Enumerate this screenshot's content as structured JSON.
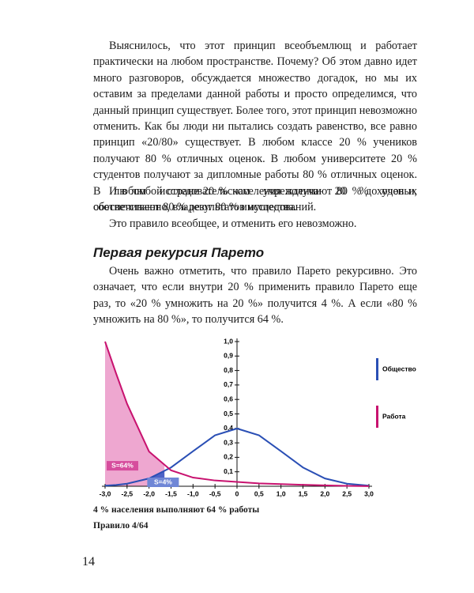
{
  "text": {
    "paragraphs": [
      "Выяснилось, что этот принцип всеобъемлющ и работает практически на любом пространстве. Почему? Об этом давно идет много разговоров, обсуждается множество догадок, но мы их оставим за пределами данной работы и просто определимся, что данный принцип существует. Более того, этот принцип невозможно отменить. Как бы люди ни пытались создать равенство, все равно принцип «20/80» существует. В любом классе 20 % учеников получают 80 % отличных оценок. В любом университете 20 % студентов получают за дипломные работы 80 % отличных оценок. В любом исследовательском учреждении 20 % ученых обеспечивают 80 % результатов исследований.",
      "И в любой стране 20 % населения получают 80 % доходов и, соответственно, владеют 80 % имущества.",
      "Это правило всеобщее, и отменить его невозможно."
    ],
    "section_title": "Первая рекурсия Парето",
    "section_paragraphs": [
      "Очень важно отметить, что правило Парето рекурсивно. Это означает, что если внутри 20 % применить правило Парето еще раз, то «20 % умножить на 20 %» получится 4 %. А если «80 % умножить на 80 %», то получится 64 %."
    ]
  },
  "chart_data": {
    "type": "line",
    "x": [
      -3,
      -2.75,
      -2.5,
      -2,
      -1.5,
      -1,
      -0.5,
      0,
      0.5,
      1,
      1.5,
      2,
      2.5,
      3
    ],
    "series": [
      {
        "name": "Общество",
        "color": "#2a4fb5",
        "values": [
          0.004,
          0.009,
          0.018,
          0.054,
          0.13,
          0.242,
          0.352,
          0.399,
          0.352,
          0.242,
          0.13,
          0.054,
          0.018,
          0.004
        ]
      },
      {
        "name": "Работа",
        "color": "#c8126f",
        "values": [
          1.0,
          0.78,
          0.57,
          0.24,
          0.11,
          0.06,
          0.04,
          0.03,
          0.02,
          0.015,
          0.01,
          0.006,
          0.003,
          0.001
        ]
      }
    ],
    "areas": [
      {
        "label": "S=64%",
        "series": 1,
        "xlim": [
          -3,
          -1.65
        ]
      },
      {
        "label": "S=4%",
        "series": 0,
        "xlim": [
          -2,
          -1.65
        ]
      }
    ],
    "xlim": [
      -3,
      3
    ],
    "ylim": [
      0,
      1
    ],
    "xticks": [
      {
        "value": -3,
        "label": "-3,0"
      },
      {
        "value": -2.5,
        "label": "-2,5"
      },
      {
        "value": -2,
        "label": "-2,0"
      },
      {
        "value": -1.5,
        "label": "-1,5"
      },
      {
        "value": -1,
        "label": "-1,0"
      },
      {
        "value": -0.5,
        "label": "-0,5"
      },
      0,
      {
        "value": 0.5,
        "label": "0,5"
      },
      {
        "value": 1,
        "label": "1,0"
      },
      {
        "value": 1.5,
        "label": "1,5"
      },
      {
        "value": 2,
        "label": "2,0"
      },
      {
        "value": 2.5,
        "label": "2,5"
      },
      {
        "value": 3,
        "label": "3,0"
      }
    ],
    "yticks": [
      {
        "value": 0.1,
        "label": "0,1"
      },
      {
        "value": 0.2,
        "label": "0,2"
      },
      {
        "value": 0.3,
        "label": "0,3"
      },
      {
        "value": 0.4,
        "label": "0,4"
      },
      {
        "value": 0.5,
        "label": "0,5"
      },
      {
        "value": 0.6,
        "label": "0,6"
      },
      {
        "value": 0.7,
        "label": "0,7"
      },
      {
        "value": 0.8,
        "label": "0,8"
      },
      {
        "value": 0.9,
        "label": "0,9"
      },
      {
        "value": 1,
        "label": "1,0"
      }
    ]
  },
  "captions": [
    "4 % населения выполняют 64 % работы",
    "Правило 4/64"
  ],
  "page_number": "14"
}
